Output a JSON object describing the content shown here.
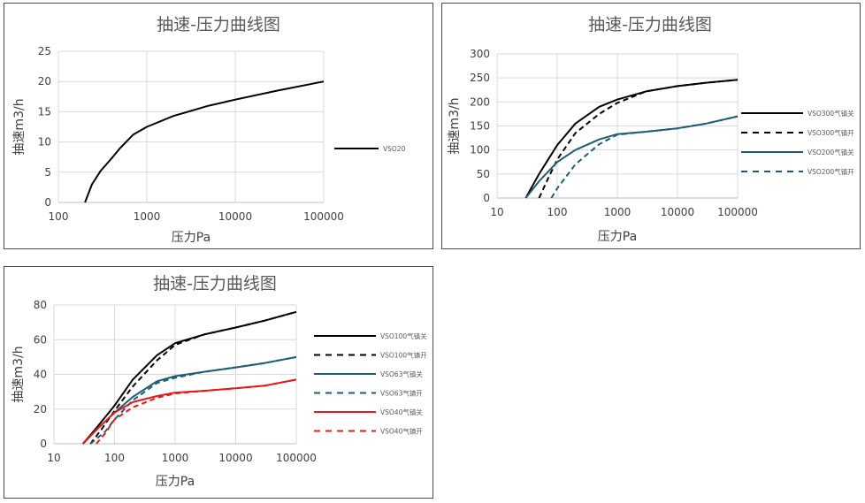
{
  "chart_data": [
    {
      "type": "line",
      "title": "抽速-压力曲线图",
      "xlabel": "压力Pa",
      "ylabel": "抽速m3/h",
      "xscale": "log",
      "xlim": [
        100,
        100000
      ],
      "ylim": [
        0,
        25
      ],
      "xticks": [
        "100",
        "1000",
        "10000",
        "100000"
      ],
      "yticks": [
        "0",
        "5",
        "10",
        "15",
        "20",
        "25"
      ],
      "grid": true,
      "legend_position": "right",
      "series": [
        {
          "name": "VSO20",
          "color": "#000000",
          "dash": "solid",
          "points": [
            [
              200,
              0
            ],
            [
              240,
              3
            ],
            [
              300,
              5.2
            ],
            [
              400,
              7.3
            ],
            [
              500,
              9
            ],
            [
              700,
              11.2
            ],
            [
              1000,
              12.5
            ],
            [
              2000,
              14.3
            ],
            [
              5000,
              16
            ],
            [
              10000,
              17
            ],
            [
              30000,
              18.5
            ],
            [
              100000,
              20
            ]
          ]
        }
      ]
    },
    {
      "type": "line",
      "title": "抽速-压力曲线图",
      "xlabel": "压力Pa",
      "ylabel": "抽速m3/h",
      "xscale": "log",
      "xlim": [
        10,
        100000
      ],
      "ylim": [
        0,
        300
      ],
      "xticks": [
        "10",
        "100",
        "1000",
        "10000",
        "100000"
      ],
      "yticks": [
        "0",
        "50",
        "100",
        "150",
        "200",
        "250",
        "300"
      ],
      "grid": true,
      "legend_position": "right",
      "series": [
        {
          "name": "VSO300气镇关",
          "color": "#000000",
          "dash": "solid",
          "points": [
            [
              30,
              0
            ],
            [
              50,
              50
            ],
            [
              100,
              110
            ],
            [
              200,
              155
            ],
            [
              500,
              190
            ],
            [
              1000,
              205
            ],
            [
              3000,
              222
            ],
            [
              10000,
              233
            ],
            [
              30000,
              240
            ],
            [
              100000,
              246
            ]
          ]
        },
        {
          "name": "VSO300气镇开",
          "color": "#000000",
          "dash": "dashed",
          "points": [
            [
              50,
              0
            ],
            [
              70,
              40
            ],
            [
              100,
              80
            ],
            [
              200,
              135
            ],
            [
              500,
              175
            ],
            [
              1000,
              198
            ],
            [
              3000,
              222
            ],
            [
              10000,
              233
            ],
            [
              30000,
              240
            ],
            [
              100000,
              246
            ]
          ]
        },
        {
          "name": "VSO200气镇关",
          "color": "#1f5c74",
          "dash": "solid",
          "points": [
            [
              30,
              0
            ],
            [
              50,
              35
            ],
            [
              100,
              75
            ],
            [
              200,
              100
            ],
            [
              500,
              122
            ],
            [
              1000,
              133
            ],
            [
              3000,
              138
            ],
            [
              10000,
              145
            ],
            [
              30000,
              155
            ],
            [
              100000,
              170
            ]
          ]
        },
        {
          "name": "VSO200气镇开",
          "color": "#1f5c74",
          "dash": "dashed",
          "points": [
            [
              80,
              0
            ],
            [
              100,
              20
            ],
            [
              200,
              70
            ],
            [
              500,
              112
            ],
            [
              1000,
              132
            ],
            [
              3000,
              138
            ],
            [
              10000,
              145
            ],
            [
              30000,
              155
            ],
            [
              100000,
              170
            ]
          ]
        }
      ]
    },
    {
      "type": "line",
      "title": "抽速-压力曲线图",
      "xlabel": "压力Pa",
      "ylabel": "抽速m3/h",
      "xscale": "log",
      "xlim": [
        10,
        100000
      ],
      "ylim": [
        0,
        80
      ],
      "xticks": [
        "10",
        "100",
        "1000",
        "10000",
        "100000"
      ],
      "yticks": [
        "0",
        "20",
        "40",
        "60",
        "80"
      ],
      "grid": true,
      "legend_position": "right",
      "series": [
        {
          "name": "VSO100气镇关",
          "color": "#000000",
          "dash": "solid",
          "points": [
            [
              30,
              0
            ],
            [
              50,
              9
            ],
            [
              100,
              22
            ],
            [
              200,
              37
            ],
            [
              500,
              51
            ],
            [
              1000,
              58
            ],
            [
              3000,
              63
            ],
            [
              10000,
              67
            ],
            [
              30000,
              71
            ],
            [
              100000,
              76
            ]
          ]
        },
        {
          "name": "VSO100气镇开",
          "color": "#000000",
          "dash": "dashed",
          "points": [
            [
              40,
              0
            ],
            [
              60,
              8
            ],
            [
              100,
              19
            ],
            [
              200,
              33
            ],
            [
              500,
              48
            ],
            [
              1000,
              57
            ],
            [
              3000,
              63
            ],
            [
              10000,
              67
            ],
            [
              30000,
              71
            ],
            [
              100000,
              76
            ]
          ]
        },
        {
          "name": "VSO63气镇关",
          "color": "#1f5c74",
          "dash": "solid",
          "points": [
            [
              30,
              0
            ],
            [
              50,
              8
            ],
            [
              100,
              18
            ],
            [
              200,
              27
            ],
            [
              500,
              36
            ],
            [
              1000,
              39
            ],
            [
              3000,
              41.5
            ],
            [
              10000,
              44
            ],
            [
              30000,
              46.5
            ],
            [
              100000,
              50
            ]
          ]
        },
        {
          "name": "VSO63气镇开",
          "color": "#1f5c74",
          "dash": "dashed",
          "points": [
            [
              40,
              0
            ],
            [
              70,
              7
            ],
            [
              100,
              14
            ],
            [
              200,
              25
            ],
            [
              500,
              35
            ],
            [
              1000,
              38
            ],
            [
              3000,
              41.5
            ],
            [
              10000,
              44
            ],
            [
              30000,
              46.5
            ],
            [
              100000,
              50
            ]
          ]
        },
        {
          "name": "VSO40气镇关",
          "color": "#e01b1b",
          "dash": "solid",
          "points": [
            [
              30,
              0
            ],
            [
              50,
              8
            ],
            [
              100,
              18
            ],
            [
              200,
              24
            ],
            [
              500,
              27.5
            ],
            [
              1000,
              29.5
            ],
            [
              3000,
              30.5
            ],
            [
              10000,
              32
            ],
            [
              30000,
              33.5
            ],
            [
              100000,
              37
            ]
          ]
        },
        {
          "name": "VSO40气镇开",
          "color": "#e01b1b",
          "dash": "dashed",
          "points": [
            [
              50,
              0
            ],
            [
              70,
              6
            ],
            [
              100,
              14
            ],
            [
              200,
              21
            ],
            [
              500,
              26.5
            ],
            [
              1000,
              29
            ],
            [
              3000,
              30.5
            ],
            [
              10000,
              32
            ],
            [
              30000,
              33.5
            ],
            [
              100000,
              37
            ]
          ]
        }
      ]
    }
  ]
}
